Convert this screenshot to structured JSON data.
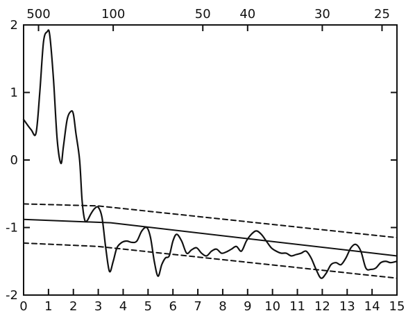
{
  "chart_data": {
    "type": "line",
    "title": "",
    "xlabel": "",
    "ylabel": "",
    "xlim": [
      0,
      15
    ],
    "ylim": [
      -2,
      2
    ],
    "grid": false,
    "legend": "none",
    "x_ticks": [
      0,
      1,
      2,
      3,
      4,
      5,
      6,
      7,
      8,
      9,
      10,
      11,
      12,
      13,
      14,
      15
    ],
    "x_tick_labels": [
      "0",
      "1",
      "2",
      "3",
      "4",
      "5",
      "6",
      "7",
      "8",
      "9",
      "10",
      "11",
      "12",
      "13",
      "14",
      "15"
    ],
    "y_ticks": [
      -2,
      -1,
      0,
      1,
      2
    ],
    "y_tick_labels": [
      "-2",
      "-1",
      "0",
      "1",
      "2"
    ],
    "top_ticks": [
      {
        "label": "500",
        "x": 0.6
      },
      {
        "label": "100",
        "x": 3.6
      },
      {
        "label": "50",
        "x": 7.2
      },
      {
        "label": "40",
        "x": 9.0
      },
      {
        "label": "30",
        "x": 12.0
      },
      {
        "label": "25",
        "x": 14.4
      }
    ],
    "series": [
      {
        "style": "solid-wavy",
        "x": [
          0,
          0.3,
          0.5,
          0.65,
          0.8,
          0.95,
          1.05,
          1.2,
          1.35,
          1.5,
          1.6,
          1.75,
          1.9,
          2.0,
          2.1,
          2.25,
          2.35,
          2.45,
          2.55,
          2.7,
          2.85,
          3.0,
          3.15,
          3.3,
          3.45,
          3.6,
          3.75,
          3.95,
          4.15,
          4.35,
          4.55,
          4.75,
          4.95,
          5.1,
          5.25,
          5.4,
          5.55,
          5.7,
          5.85,
          6.0,
          6.15,
          6.35,
          6.55,
          6.75,
          6.95,
          7.15,
          7.35,
          7.55,
          7.75,
          7.95,
          8.15,
          8.35,
          8.55,
          8.75,
          8.95,
          9.15,
          9.35,
          9.55,
          9.75,
          9.95,
          10.15,
          10.35,
          10.55,
          10.75,
          10.95,
          11.15,
          11.35,
          11.55,
          11.75,
          11.95,
          12.15,
          12.35,
          12.55,
          12.75,
          12.95,
          13.15,
          13.35,
          13.55,
          13.75,
          13.95,
          14.15,
          14.35,
          14.55,
          14.75,
          15.0
        ],
        "y": [
          0.6,
          0.45,
          0.4,
          1.0,
          1.75,
          1.9,
          1.85,
          1.2,
          0.3,
          -0.05,
          0.2,
          0.6,
          0.72,
          0.68,
          0.4,
          0.0,
          -0.6,
          -0.88,
          -0.9,
          -0.8,
          -0.72,
          -0.7,
          -0.85,
          -1.3,
          -1.65,
          -1.5,
          -1.3,
          -1.22,
          -1.2,
          -1.22,
          -1.2,
          -1.05,
          -1.0,
          -1.15,
          -1.5,
          -1.72,
          -1.55,
          -1.45,
          -1.42,
          -1.2,
          -1.1,
          -1.2,
          -1.38,
          -1.33,
          -1.3,
          -1.38,
          -1.42,
          -1.35,
          -1.32,
          -1.38,
          -1.36,
          -1.32,
          -1.28,
          -1.35,
          -1.2,
          -1.1,
          -1.05,
          -1.1,
          -1.2,
          -1.3,
          -1.35,
          -1.38,
          -1.38,
          -1.42,
          -1.4,
          -1.38,
          -1.35,
          -1.45,
          -1.62,
          -1.75,
          -1.68,
          -1.55,
          -1.52,
          -1.55,
          -1.45,
          -1.3,
          -1.25,
          -1.35,
          -1.6,
          -1.62,
          -1.6,
          -1.52,
          -1.5,
          -1.52,
          -1.5
        ]
      },
      {
        "style": "solid",
        "x": [
          0,
          3.5,
          15
        ],
        "y": [
          -0.88,
          -0.93,
          -1.42
        ]
      },
      {
        "style": "dashed",
        "x": [
          0,
          3,
          15
        ],
        "y": [
          -0.65,
          -0.68,
          -1.15
        ]
      },
      {
        "style": "dashed",
        "x": [
          0,
          3,
          15
        ],
        "y": [
          -1.23,
          -1.28,
          -1.75
        ]
      }
    ]
  }
}
